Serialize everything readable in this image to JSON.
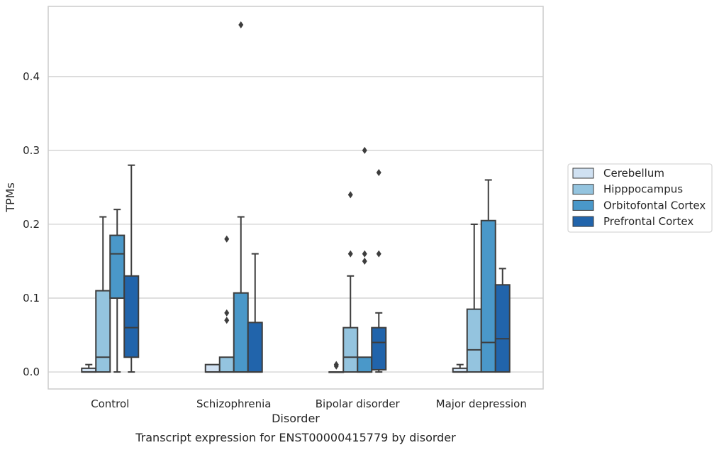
{
  "chart_data": {
    "type": "box",
    "title": "Transcript expression for ENST00000415779 by disorder",
    "xlabel": "Disorder",
    "ylabel": "TPMs",
    "ylim": [
      -0.023,
      0.495
    ],
    "yticks": [
      0.0,
      0.1,
      0.2,
      0.3,
      0.4
    ],
    "ytick_labels": [
      "0.0",
      "0.1",
      "0.2",
      "0.3",
      "0.4"
    ],
    "grid": "horizontal",
    "legend_position": "right",
    "categories": [
      "Control",
      "Schizophrenia",
      "Bipolar disorder",
      "Major depression"
    ],
    "series": [
      {
        "name": "Cerebellum",
        "color": "#d0e1f2",
        "boxes": [
          {
            "q1": 0.0,
            "median": 0.0,
            "q3": 0.005,
            "whisker_low": 0.0,
            "whisker_high": 0.01,
            "outliers": []
          },
          {
            "q1": 0.0,
            "median": 0.0,
            "q3": 0.01,
            "whisker_low": 0.0,
            "whisker_high": 0.01,
            "outliers": []
          },
          {
            "q1": 0.0,
            "median": 0.0,
            "q3": 0.0,
            "whisker_low": 0.0,
            "whisker_high": 0.0,
            "outliers": [
              0.008,
              0.01
            ]
          },
          {
            "q1": 0.0,
            "median": 0.0,
            "q3": 0.005,
            "whisker_low": 0.0,
            "whisker_high": 0.01,
            "outliers": []
          }
        ]
      },
      {
        "name": "Hipppocampus",
        "color": "#94c4df",
        "boxes": [
          {
            "q1": 0.0,
            "median": 0.02,
            "q3": 0.11,
            "whisker_low": 0.0,
            "whisker_high": 0.21,
            "outliers": []
          },
          {
            "q1": 0.0,
            "median": 0.0,
            "q3": 0.02,
            "whisker_low": 0.0,
            "whisker_high": 0.02,
            "outliers": [
              0.07,
              0.08,
              0.18
            ]
          },
          {
            "q1": 0.0,
            "median": 0.02,
            "q3": 0.06,
            "whisker_low": 0.0,
            "whisker_high": 0.13,
            "outliers": [
              0.16,
              0.24
            ]
          },
          {
            "q1": 0.0,
            "median": 0.03,
            "q3": 0.085,
            "whisker_low": 0.0,
            "whisker_high": 0.2,
            "outliers": []
          }
        ]
      },
      {
        "name": "Orbitofontal Cortex",
        "color": "#4a98c9",
        "boxes": [
          {
            "q1": 0.1,
            "median": 0.16,
            "q3": 0.185,
            "whisker_low": 0.0,
            "whisker_high": 0.22,
            "outliers": []
          },
          {
            "q1": 0.0,
            "median": 0.0,
            "q3": 0.107,
            "whisker_low": 0.0,
            "whisker_high": 0.21,
            "outliers": [
              0.47
            ]
          },
          {
            "q1": 0.0,
            "median": 0.0,
            "q3": 0.02,
            "whisker_low": 0.0,
            "whisker_high": 0.02,
            "outliers": [
              0.15,
              0.16,
              0.3
            ]
          },
          {
            "q1": 0.0,
            "median": 0.04,
            "q3": 0.205,
            "whisker_low": 0.0,
            "whisker_high": 0.26,
            "outliers": []
          }
        ]
      },
      {
        "name": "Prefrontal Cortex",
        "color": "#2164ab",
        "boxes": [
          {
            "q1": 0.02,
            "median": 0.06,
            "q3": 0.13,
            "whisker_low": 0.0,
            "whisker_high": 0.28,
            "outliers": []
          },
          {
            "q1": 0.0,
            "median": 0.0,
            "q3": 0.067,
            "whisker_low": 0.0,
            "whisker_high": 0.16,
            "outliers": []
          },
          {
            "q1": 0.003,
            "median": 0.04,
            "q3": 0.06,
            "whisker_low": 0.0,
            "whisker_high": 0.08,
            "outliers": [
              0.16,
              0.27
            ]
          },
          {
            "q1": 0.0,
            "median": 0.045,
            "q3": 0.118,
            "whisker_low": 0.0,
            "whisker_high": 0.14,
            "outliers": []
          }
        ]
      }
    ]
  }
}
